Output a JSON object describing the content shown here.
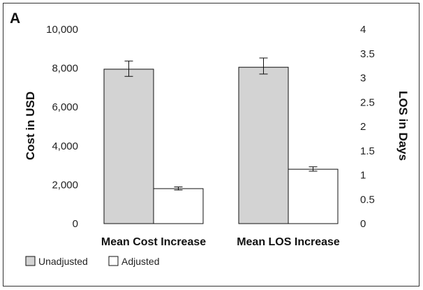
{
  "chart_data": {
    "type": "bar",
    "panel_label": "A",
    "categories": [
      "Mean Cost Increase",
      "Mean LOS Increase"
    ],
    "series": [
      {
        "name": "Unadjusted",
        "color": "#d3d3d3",
        "values": [
          7950,
          3.22
        ],
        "error_low": [
          7580,
          3.08
        ],
        "error_high": [
          8370,
          3.41
        ]
      },
      {
        "name": "Adjusted",
        "color": "#ffffff",
        "values": [
          1800,
          1.12
        ],
        "error_low": [
          1730,
          1.08
        ],
        "error_high": [
          1890,
          1.17
        ]
      }
    ],
    "left_axis": {
      "label": "Cost in USD",
      "ylim": [
        0,
        10000
      ],
      "ticks": [
        0,
        2000,
        4000,
        6000,
        8000,
        10000
      ],
      "tick_labels": [
        "0",
        "2,000",
        "4,000",
        "6,000",
        "8,000",
        "10,000"
      ],
      "applies_to": "Mean Cost Increase"
    },
    "right_axis": {
      "label": "LOS in Days",
      "ylim": [
        0,
        4
      ],
      "ticks": [
        0,
        0.5,
        1,
        1.5,
        2,
        2.5,
        3,
        3.5,
        4
      ],
      "tick_labels": [
        "0",
        "0.5",
        "1",
        "1.5",
        "2",
        "2.5",
        "3",
        "3.5",
        "4"
      ],
      "applies_to": "Mean LOS Increase"
    },
    "legend": {
      "position": "bottom-left",
      "items": [
        "Unadjusted",
        "Adjusted"
      ]
    },
    "grid": false
  }
}
